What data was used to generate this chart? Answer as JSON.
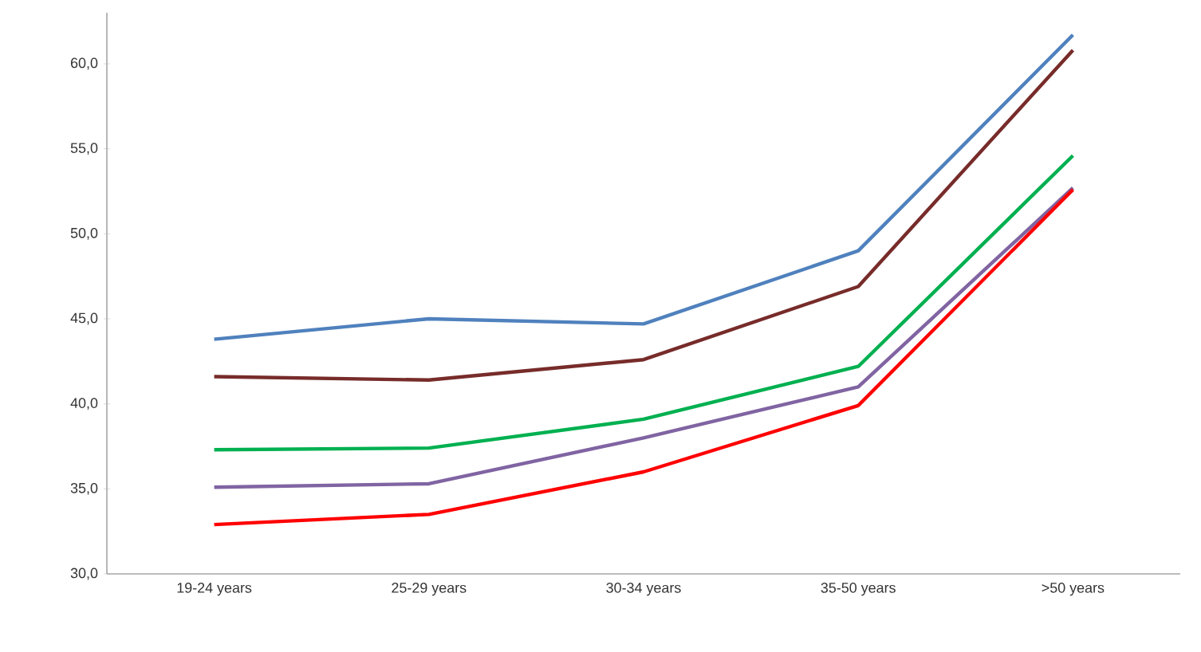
{
  "chart_data": {
    "type": "line",
    "categories": [
      "19-24 years",
      "25-29 years",
      "30-34 years",
      "35-50 years",
      ">50 years"
    ],
    "series": [
      {
        "color": "#4f81bd",
        "values": [
          43.8,
          45.0,
          44.7,
          49.0,
          61.7
        ]
      },
      {
        "color": "#772c2a",
        "values": [
          41.6,
          41.4,
          42.6,
          46.9,
          60.8
        ]
      },
      {
        "color": "#00b050",
        "values": [
          37.3,
          37.4,
          39.1,
          42.2,
          54.6
        ]
      },
      {
        "color": "#8064a2",
        "values": [
          35.1,
          35.3,
          38.0,
          41.0,
          52.7
        ]
      },
      {
        "color": "#ff0000",
        "values": [
          32.9,
          33.5,
          36.0,
          39.9,
          52.6
        ]
      }
    ],
    "ylim": [
      30,
      63
    ],
    "yticks": [
      {
        "value": 30,
        "label": "30,0"
      },
      {
        "value": 35,
        "label": "35,0"
      },
      {
        "value": 40,
        "label": "40,0"
      },
      {
        "value": 45,
        "label": "45,0"
      },
      {
        "value": 50,
        "label": "50,0"
      },
      {
        "value": 55,
        "label": "55,0"
      },
      {
        "value": 60,
        "label": "60,0"
      }
    ],
    "grid": false,
    "marker": "none",
    "line_style": "solid"
  }
}
